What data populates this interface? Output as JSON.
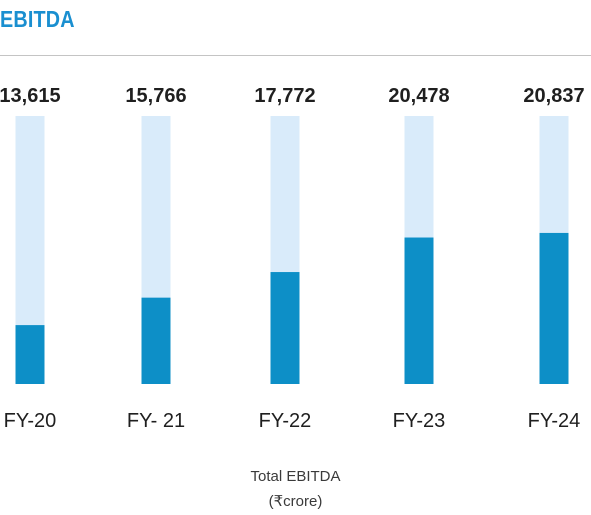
{
  "header": {
    "title": "EBITDA"
  },
  "colors": {
    "title": "#1a8fd0",
    "bar_fill": "#0d8fc7",
    "bar_track": "#d9ebfa",
    "value_text": "#1f1f1f",
    "category_text": "#1f1f1f",
    "rule": "#c4c4c4"
  },
  "chart_data": {
    "type": "bar",
    "title": "EBITDA",
    "categories": [
      "FY-20",
      "FY- 21",
      "FY-22",
      "FY-23",
      "FY-24"
    ],
    "values": [
      13615,
      15766,
      17772,
      20478,
      20837
    ],
    "value_labels": [
      "13,615",
      "15,766",
      "17,772",
      "20,478",
      "20,837"
    ],
    "xlabel": "Total EBITDA",
    "ylabel": "",
    "unit": "(₹crore)",
    "ylim": [
      9000,
      30000
    ],
    "grid": false,
    "legend": "none"
  },
  "caption": {
    "line1": "Total EBITDA",
    "line2": "(₹crore)"
  }
}
